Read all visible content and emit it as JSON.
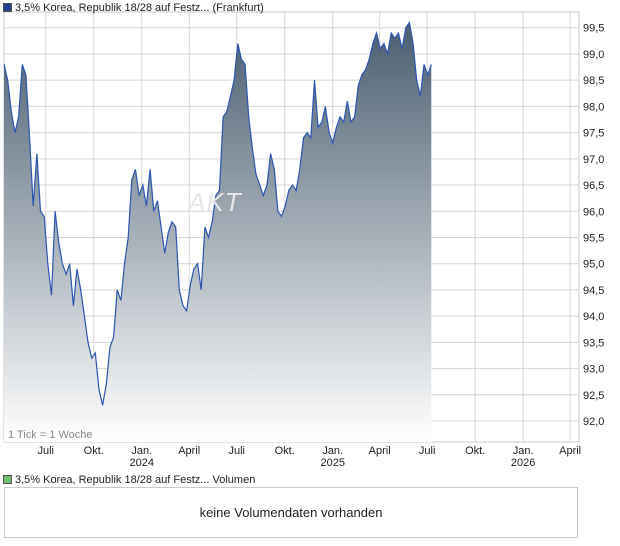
{
  "legend": {
    "price_label": "3,5% Korea, Republik 18/28 auf Festz... (Frankfurt)",
    "price_color": "#1f3f8f",
    "volume_label": "3,5% Korea, Republik 18/28 auf Festz... Volumen",
    "volume_color": "#6fbf6f"
  },
  "tick_note": "1 Tick = 1 Woche",
  "watermark": "AKT",
  "volume_panel": {
    "message": "keine Volumendaten vorhanden"
  },
  "colors": {
    "line": "#2b55b0",
    "area_top": "#4a5e70",
    "area_bottom": "#ffffff",
    "grid": "#d6d6d6"
  },
  "chart_data": {
    "type": "area",
    "y_ticks": [
      "92,0",
      "92,5",
      "93,0",
      "93,5",
      "94,0",
      "94,5",
      "95,0",
      "95,5",
      "96,0",
      "96,5",
      "97,0",
      "97,5",
      "98,0",
      "98,5",
      "99,0",
      "99,5"
    ],
    "ylim": [
      91.6,
      99.8
    ],
    "x_ticks": [
      {
        "label": "Juli",
        "sub": "",
        "date": "2023-07-01"
      },
      {
        "label": "Okt.",
        "sub": "",
        "date": "2023-10-01"
      },
      {
        "label": "Jan.",
        "sub": "2024",
        "date": "2024-01-01"
      },
      {
        "label": "April",
        "sub": "",
        "date": "2024-04-01"
      },
      {
        "label": "Juli",
        "sub": "",
        "date": "2024-07-01"
      },
      {
        "label": "Okt.",
        "sub": "",
        "date": "2024-10-01"
      },
      {
        "label": "Jan.",
        "sub": "2025",
        "date": "2025-01-01"
      },
      {
        "label": "April",
        "sub": "",
        "date": "2025-04-01"
      },
      {
        "label": "Juli",
        "sub": "",
        "date": "2025-07-01"
      },
      {
        "label": "Okt.",
        "sub": "",
        "date": "2025-10-01"
      },
      {
        "label": "Jan.",
        "sub": "2026",
        "date": "2026-01-01"
      },
      {
        "label": "April",
        "sub": "",
        "date": "2026-04-01"
      }
    ],
    "x_range": [
      "2023-04-12",
      "2026-04-18"
    ],
    "series": [
      {
        "values": [
          [
            "2023-04-12",
            98.8
          ],
          [
            "2023-04-19",
            98.5
          ],
          [
            "2023-04-26",
            97.9
          ],
          [
            "2023-05-03",
            97.5
          ],
          [
            "2023-05-10",
            97.8
          ],
          [
            "2023-05-17",
            98.8
          ],
          [
            "2023-05-24",
            98.6
          ],
          [
            "2023-05-31",
            97.4
          ],
          [
            "2023-06-07",
            96.1
          ],
          [
            "2023-06-14",
            97.1
          ],
          [
            "2023-06-21",
            96.0
          ],
          [
            "2023-06-28",
            95.9
          ],
          [
            "2023-07-05",
            95.0
          ],
          [
            "2023-07-12",
            94.4
          ],
          [
            "2023-07-19",
            96.0
          ],
          [
            "2023-07-26",
            95.4
          ],
          [
            "2023-08-02",
            95.0
          ],
          [
            "2023-08-09",
            94.8
          ],
          [
            "2023-08-16",
            95.0
          ],
          [
            "2023-08-23",
            94.2
          ],
          [
            "2023-08-30",
            94.9
          ],
          [
            "2023-09-06",
            94.5
          ],
          [
            "2023-09-13",
            94.0
          ],
          [
            "2023-09-20",
            93.5
          ],
          [
            "2023-09-27",
            93.2
          ],
          [
            "2023-10-04",
            93.3
          ],
          [
            "2023-10-11",
            92.6
          ],
          [
            "2023-10-18",
            92.3
          ],
          [
            "2023-10-25",
            92.7
          ],
          [
            "2023-11-01",
            93.4
          ],
          [
            "2023-11-08",
            93.6
          ],
          [
            "2023-11-15",
            94.5
          ],
          [
            "2023-11-22",
            94.3
          ],
          [
            "2023-11-29",
            95.0
          ],
          [
            "2023-12-06",
            95.5
          ],
          [
            "2023-12-13",
            96.6
          ],
          [
            "2023-12-20",
            96.8
          ],
          [
            "2023-12-27",
            96.3
          ],
          [
            "2024-01-03",
            96.5
          ],
          [
            "2024-01-10",
            96.1
          ],
          [
            "2024-01-17",
            96.8
          ],
          [
            "2024-01-24",
            96.0
          ],
          [
            "2024-01-31",
            96.2
          ],
          [
            "2024-02-07",
            95.7
          ],
          [
            "2024-02-14",
            95.2
          ],
          [
            "2024-02-21",
            95.6
          ],
          [
            "2024-02-28",
            95.8
          ],
          [
            "2024-03-06",
            95.7
          ],
          [
            "2024-03-13",
            94.5
          ],
          [
            "2024-03-20",
            94.2
          ],
          [
            "2024-03-27",
            94.1
          ],
          [
            "2024-04-03",
            94.6
          ],
          [
            "2024-04-10",
            94.9
          ],
          [
            "2024-04-17",
            95.0
          ],
          [
            "2024-04-24",
            94.5
          ],
          [
            "2024-05-01",
            95.7
          ],
          [
            "2024-05-08",
            95.5
          ],
          [
            "2024-05-15",
            95.8
          ],
          [
            "2024-05-22",
            96.3
          ],
          [
            "2024-05-29",
            96.4
          ],
          [
            "2024-06-05",
            97.8
          ],
          [
            "2024-06-12",
            97.9
          ],
          [
            "2024-06-19",
            98.2
          ],
          [
            "2024-06-26",
            98.5
          ],
          [
            "2024-07-03",
            99.2
          ],
          [
            "2024-07-10",
            98.9
          ],
          [
            "2024-07-17",
            98.8
          ],
          [
            "2024-07-24",
            97.8
          ],
          [
            "2024-07-31",
            97.2
          ],
          [
            "2024-08-07",
            96.7
          ],
          [
            "2024-08-14",
            96.5
          ],
          [
            "2024-08-21",
            96.3
          ],
          [
            "2024-08-28",
            96.5
          ],
          [
            "2024-09-04",
            97.1
          ],
          [
            "2024-09-11",
            96.8
          ],
          [
            "2024-09-18",
            96.0
          ],
          [
            "2024-09-25",
            95.9
          ],
          [
            "2024-10-02",
            96.1
          ],
          [
            "2024-10-09",
            96.4
          ],
          [
            "2024-10-16",
            96.5
          ],
          [
            "2024-10-23",
            96.4
          ],
          [
            "2024-10-30",
            96.8
          ],
          [
            "2024-11-06",
            97.4
          ],
          [
            "2024-11-13",
            97.5
          ],
          [
            "2024-11-20",
            97.4
          ],
          [
            "2024-11-27",
            98.5
          ],
          [
            "2024-12-04",
            97.6
          ],
          [
            "2024-12-11",
            97.7
          ],
          [
            "2024-12-18",
            98.0
          ],
          [
            "2024-12-25",
            97.5
          ],
          [
            "2025-01-01",
            97.3
          ],
          [
            "2025-01-08",
            97.6
          ],
          [
            "2025-01-15",
            97.8
          ],
          [
            "2025-01-22",
            97.7
          ],
          [
            "2025-01-29",
            98.1
          ],
          [
            "2025-02-05",
            97.7
          ],
          [
            "2025-02-12",
            97.8
          ],
          [
            "2025-02-19",
            98.4
          ],
          [
            "2025-02-26",
            98.6
          ],
          [
            "2025-03-05",
            98.7
          ],
          [
            "2025-03-12",
            98.9
          ],
          [
            "2025-03-19",
            99.2
          ],
          [
            "2025-03-26",
            99.4
          ],
          [
            "2025-04-02",
            99.1
          ],
          [
            "2025-04-09",
            99.2
          ],
          [
            "2025-04-16",
            99.0
          ],
          [
            "2025-04-23",
            99.4
          ],
          [
            "2025-04-30",
            99.3
          ],
          [
            "2025-05-07",
            99.4
          ],
          [
            "2025-05-14",
            99.1
          ],
          [
            "2025-05-21",
            99.5
          ],
          [
            "2025-05-28",
            99.6
          ],
          [
            "2025-06-04",
            99.2
          ],
          [
            "2025-06-11",
            98.5
          ],
          [
            "2025-06-18",
            98.2
          ],
          [
            "2025-06-25",
            98.8
          ],
          [
            "2025-07-02",
            98.6
          ],
          [
            "2025-07-09",
            98.8
          ]
        ]
      }
    ]
  }
}
